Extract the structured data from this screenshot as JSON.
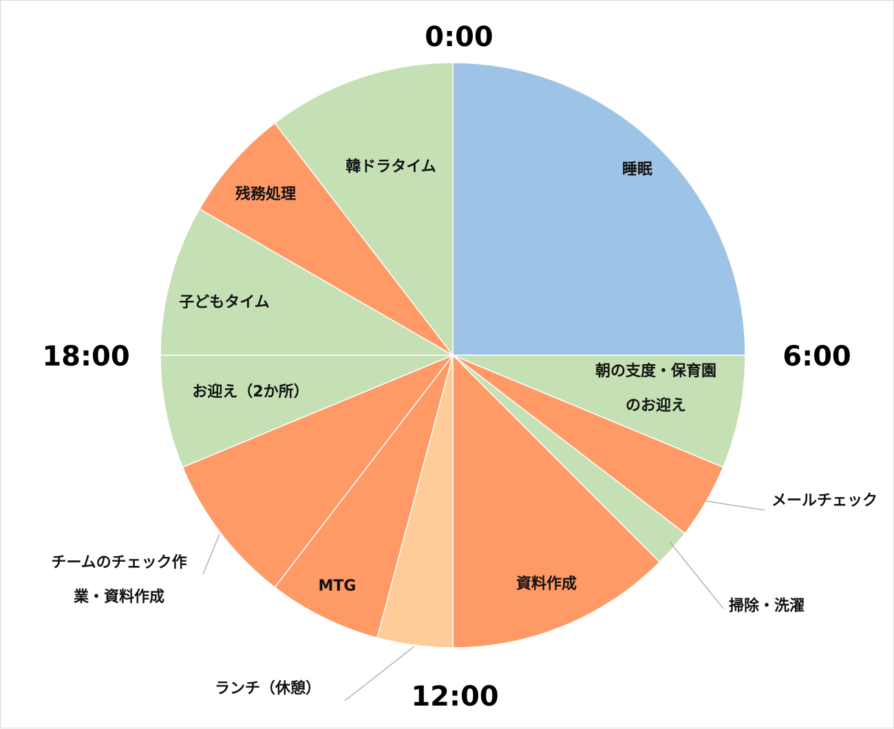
{
  "chart_data": {
    "type": "pie",
    "start": "0:00",
    "unit": "hours",
    "slices": [
      {
        "label": "睡眠",
        "hours": 6,
        "color": "#9dc3e6"
      },
      {
        "label": "朝の支度・保育園\nのお迎え",
        "hours": 1.5,
        "color": "#c5e0b4"
      },
      {
        "label": "メールチェック",
        "hours": 1,
        "color": "#ff9966"
      },
      {
        "label": "掃除・洗濯",
        "hours": 0.5,
        "color": "#c5e0b4"
      },
      {
        "label": "資料作成",
        "hours": 3,
        "color": "#ff9966"
      },
      {
        "label": "ランチ（休憩）",
        "hours": 1,
        "color": "#ffcc99"
      },
      {
        "label": "MTG",
        "hours": 1.5,
        "color": "#ff9966"
      },
      {
        "label": "チームのチェック作\n業・資料作成",
        "hours": 2,
        "color": "#ff9966"
      },
      {
        "label": "お迎え（2か所）",
        "hours": 1.5,
        "color": "#c5e0b4"
      },
      {
        "label": "子どもタイム",
        "hours": 2,
        "color": "#c5e0b4"
      },
      {
        "label": "残務処理",
        "hours": 1.5,
        "color": "#ff9966"
      },
      {
        "label": "韓ドラタイム",
        "hours": 2.5,
        "color": "#c5e0b4"
      }
    ],
    "hour_labels": [
      "0:00",
      "6:00",
      "12:00",
      "18:00"
    ]
  }
}
